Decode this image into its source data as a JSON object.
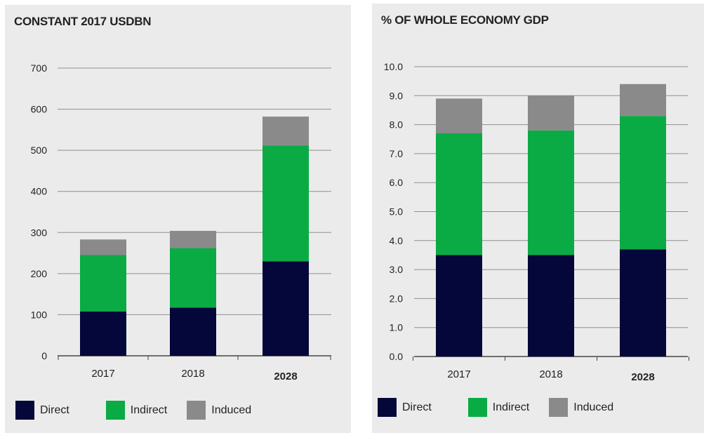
{
  "colors": {
    "direct": "#05073a",
    "indirect": "#0aab45",
    "induced": "#8a8a8a",
    "grid": "#8f8f8f",
    "axis": "#444444"
  },
  "chart_data": [
    {
      "type": "bar",
      "stacked": true,
      "title": "CONSTANT 2017 USDBN",
      "categories": [
        "2017",
        "2018",
        "2028"
      ],
      "series": [
        {
          "name": "Direct",
          "values": [
            108,
            117,
            230
          ]
        },
        {
          "name": "Indirect",
          "values": [
            137,
            145,
            282
          ]
        },
        {
          "name": "Induced",
          "values": [
            38,
            42,
            70
          ]
        }
      ],
      "yticks": [
        "0",
        "100",
        "200",
        "300",
        "400",
        "500",
        "600",
        "700"
      ],
      "ylim": [
        0,
        700
      ],
      "grid": true,
      "legend_position": "bottom-left"
    },
    {
      "type": "bar",
      "stacked": true,
      "title": "% OF WHOLE ECONOMY GDP",
      "categories": [
        "2017",
        "2018",
        "2028"
      ],
      "series": [
        {
          "name": "Direct",
          "values": [
            3.5,
            3.5,
            3.7
          ]
        },
        {
          "name": "Indirect",
          "values": [
            4.2,
            4.3,
            4.6
          ]
        },
        {
          "name": "Induced",
          "values": [
            1.2,
            1.2,
            1.1
          ]
        }
      ],
      "yticks": [
        "0.0",
        "1.0",
        "2.0",
        "3.0",
        "4.0",
        "5.0",
        "6.0",
        "7.0",
        "8.0",
        "9.0",
        "10.0"
      ],
      "ylim": [
        0,
        10
      ],
      "grid": true,
      "legend_position": "bottom-left"
    }
  ]
}
